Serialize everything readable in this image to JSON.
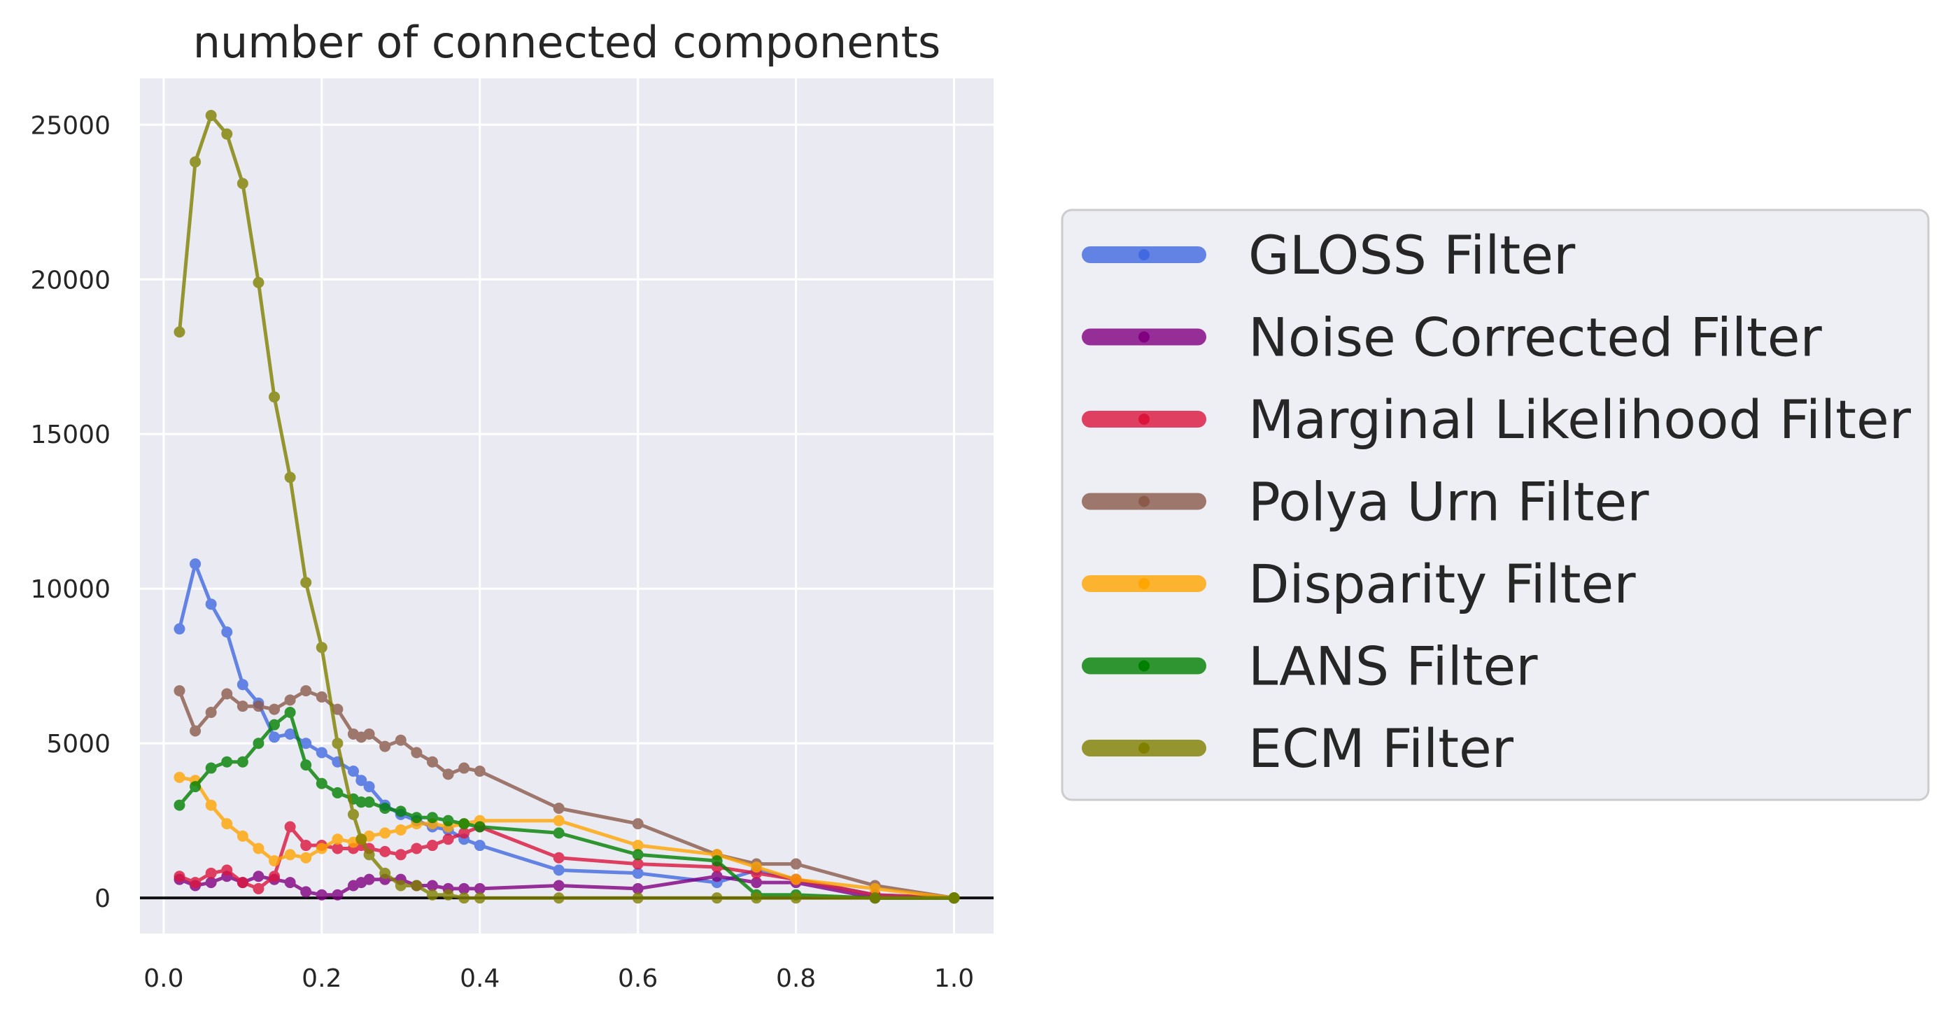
{
  "chart_data": {
    "type": "line",
    "title": "number of connected components",
    "xlabel": "",
    "ylabel": "",
    "xlim": [
      -0.03,
      1.05
    ],
    "ylim": [
      -1150,
      26500
    ],
    "xticks": [
      0.0,
      0.2,
      0.4,
      0.6,
      0.8,
      1.0
    ],
    "xtick_labels": [
      "0.0",
      "0.2",
      "0.4",
      "0.6",
      "0.8",
      "1.0"
    ],
    "yticks": [
      0,
      5000,
      10000,
      15000,
      20000,
      25000
    ],
    "ytick_labels": [
      "0",
      "5000",
      "10000",
      "15000",
      "20000",
      "25000"
    ],
    "grid": true,
    "legend_position": "outside-right",
    "background": "#eaeaf2",
    "zero_line": true,
    "series": [
      {
        "name": "GLOSS Filter",
        "color": "#4169e1",
        "x": [
          0.02,
          0.04,
          0.06,
          0.08,
          0.1,
          0.12,
          0.14,
          0.16,
          0.18,
          0.2,
          0.22,
          0.24,
          0.25,
          0.26,
          0.28,
          0.3,
          0.32,
          0.34,
          0.36,
          0.38,
          0.4,
          0.5,
          0.6,
          0.7,
          0.75,
          0.8,
          0.9,
          1.0
        ],
        "y": [
          8700,
          10800,
          9500,
          8600,
          6900,
          6300,
          5200,
          5300,
          5000,
          4700,
          4400,
          4100,
          3800,
          3600,
          3000,
          2700,
          2500,
          2300,
          2200,
          1900,
          1700,
          900,
          800,
          500,
          900,
          600,
          100,
          0
        ]
      },
      {
        "name": "Noise Corrected Filter",
        "color": "#800080",
        "x": [
          0.02,
          0.04,
          0.06,
          0.08,
          0.1,
          0.12,
          0.14,
          0.16,
          0.18,
          0.2,
          0.22,
          0.24,
          0.25,
          0.26,
          0.28,
          0.3,
          0.32,
          0.34,
          0.36,
          0.38,
          0.4,
          0.5,
          0.6,
          0.7,
          0.75,
          0.8,
          0.9,
          1.0
        ],
        "y": [
          600,
          400,
          500,
          700,
          500,
          700,
          600,
          500,
          200,
          100,
          100,
          400,
          500,
          600,
          600,
          600,
          400,
          400,
          300,
          300,
          300,
          400,
          300,
          700,
          500,
          500,
          0,
          0
        ]
      },
      {
        "name": "Marginal Likelihood Filter",
        "color": "#dc143c",
        "x": [
          0.02,
          0.04,
          0.06,
          0.08,
          0.1,
          0.12,
          0.14,
          0.16,
          0.18,
          0.2,
          0.22,
          0.24,
          0.25,
          0.26,
          0.28,
          0.3,
          0.32,
          0.34,
          0.36,
          0.38,
          0.4,
          0.5,
          0.6,
          0.7,
          0.75,
          0.8,
          0.9,
          1.0
        ],
        "y": [
          700,
          500,
          800,
          900,
          500,
          300,
          700,
          2300,
          1700,
          1700,
          1600,
          1600,
          1700,
          1600,
          1500,
          1400,
          1600,
          1700,
          1900,
          2100,
          2300,
          1300,
          1100,
          1000,
          800,
          600,
          100,
          0
        ]
      },
      {
        "name": "Polya Urn Filter",
        "color": "#8b5a4b",
        "x": [
          0.02,
          0.04,
          0.06,
          0.08,
          0.1,
          0.12,
          0.14,
          0.16,
          0.18,
          0.2,
          0.22,
          0.24,
          0.25,
          0.26,
          0.28,
          0.3,
          0.32,
          0.34,
          0.36,
          0.38,
          0.4,
          0.5,
          0.6,
          0.7,
          0.75,
          0.8,
          0.9,
          1.0
        ],
        "y": [
          6700,
          5400,
          6000,
          6600,
          6200,
          6200,
          6100,
          6400,
          6700,
          6500,
          6100,
          5300,
          5200,
          5300,
          4900,
          5100,
          4700,
          4400,
          4000,
          4200,
          4100,
          2900,
          2400,
          1400,
          1100,
          1100,
          400,
          0
        ]
      },
      {
        "name": "Disparity Filter",
        "color": "#ffa500",
        "x": [
          0.02,
          0.04,
          0.06,
          0.08,
          0.1,
          0.12,
          0.14,
          0.16,
          0.18,
          0.2,
          0.22,
          0.24,
          0.25,
          0.26,
          0.28,
          0.3,
          0.32,
          0.34,
          0.36,
          0.38,
          0.4,
          0.5,
          0.6,
          0.7,
          0.75,
          0.8,
          0.9,
          1.0
        ],
        "y": [
          3900,
          3800,
          3000,
          2400,
          2000,
          1600,
          1200,
          1400,
          1300,
          1600,
          1900,
          1800,
          1900,
          2000,
          2100,
          2200,
          2400,
          2400,
          2300,
          2400,
          2500,
          2500,
          1700,
          1400,
          1000,
          600,
          300,
          0
        ]
      },
      {
        "name": "LANS Filter",
        "color": "#008000",
        "x": [
          0.02,
          0.04,
          0.06,
          0.08,
          0.1,
          0.12,
          0.14,
          0.16,
          0.18,
          0.2,
          0.22,
          0.24,
          0.25,
          0.26,
          0.28,
          0.3,
          0.32,
          0.34,
          0.36,
          0.38,
          0.4,
          0.5,
          0.6,
          0.7,
          0.75,
          0.8,
          0.9,
          1.0
        ],
        "y": [
          3000,
          3600,
          4200,
          4400,
          4400,
          5000,
          5600,
          6000,
          4300,
          3700,
          3400,
          3200,
          3100,
          3100,
          2900,
          2800,
          2600,
          2600,
          2500,
          2400,
          2300,
          2100,
          1400,
          1200,
          100,
          100,
          0,
          0
        ]
      },
      {
        "name": "ECM Filter",
        "color": "#808000",
        "x": [
          0.02,
          0.04,
          0.06,
          0.08,
          0.1,
          0.12,
          0.14,
          0.16,
          0.18,
          0.2,
          0.22,
          0.24,
          0.25,
          0.26,
          0.28,
          0.3,
          0.32,
          0.34,
          0.36,
          0.38,
          0.4,
          0.5,
          0.6,
          0.7,
          0.75,
          0.8,
          0.9,
          1.0
        ],
        "y": [
          18300,
          23800,
          25300,
          24700,
          23100,
          19900,
          16200,
          13600,
          10200,
          8100,
          5000,
          2700,
          1900,
          1400,
          800,
          400,
          400,
          100,
          100,
          0,
          0,
          0,
          0,
          0,
          0,
          0,
          0,
          0
        ]
      }
    ]
  }
}
